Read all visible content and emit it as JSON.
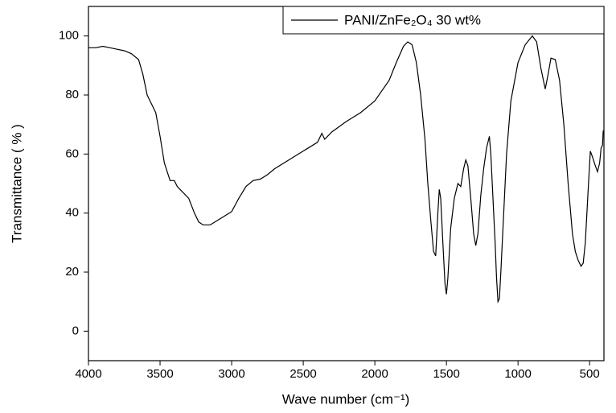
{
  "chart_data": {
    "type": "line",
    "xlabel": "Wave number (cm⁻¹)",
    "ylabel": "Transmittance ( % )",
    "x": [
      4000,
      3950,
      3900,
      3850,
      3800,
      3750,
      3700,
      3650,
      3620,
      3590,
      3560,
      3530,
      3500,
      3470,
      3430,
      3400,
      3380,
      3350,
      3300,
      3260,
      3230,
      3200,
      3150,
      3100,
      3050,
      3000,
      2950,
      2900,
      2850,
      2800,
      2750,
      2700,
      2600,
      2500,
      2400,
      2370,
      2350,
      2300,
      2200,
      2100,
      2000,
      1900,
      1850,
      1800,
      1770,
      1740,
      1710,
      1680,
      1650,
      1630,
      1610,
      1590,
      1575,
      1560,
      1550,
      1540,
      1525,
      1510,
      1500,
      1490,
      1470,
      1445,
      1420,
      1400,
      1380,
      1365,
      1350,
      1330,
      1310,
      1295,
      1280,
      1260,
      1240,
      1220,
      1200,
      1190,
      1175,
      1160,
      1150,
      1140,
      1130,
      1120,
      1100,
      1080,
      1050,
      1000,
      950,
      900,
      870,
      840,
      810,
      790,
      770,
      740,
      710,
      680,
      650,
      620,
      600,
      580,
      560,
      545,
      530,
      510,
      495,
      480,
      460,
      445,
      430,
      420,
      410,
      405
    ],
    "series": [
      {
        "name": "PANI/ZnFe₂O₄ 30 wt%",
        "color": "#000000",
        "values": [
          96,
          96,
          96.5,
          96,
          95.5,
          95,
          94,
          92,
          87,
          80,
          77,
          74,
          66,
          57,
          51,
          51,
          49,
          47.5,
          45,
          40,
          37,
          36,
          36,
          37.5,
          39,
          40.5,
          45,
          49,
          51,
          51.5,
          53,
          55,
          58,
          61,
          64,
          67,
          65,
          67.5,
          71,
          74,
          78,
          85,
          91,
          96.5,
          98,
          97,
          91,
          80,
          65,
          50,
          38,
          27,
          25.5,
          40,
          48,
          45,
          30,
          16,
          12.5,
          18,
          35,
          45,
          50,
          49,
          55,
          58,
          56,
          45,
          33,
          29,
          33,
          46,
          55,
          62,
          66,
          60,
          45,
          30,
          18,
          10,
          11,
          20,
          40,
          60,
          78,
          91,
          97,
          100,
          98,
          89,
          82,
          87,
          92.5,
          92,
          85,
          70,
          50,
          33,
          27,
          24,
          22,
          23,
          30,
          48,
          61,
          59,
          56,
          54,
          57,
          62,
          63,
          68
        ]
      }
    ],
    "xlim": [
      4000,
      400
    ],
    "ylim": [
      -10,
      110
    ],
    "xticks": [
      4000,
      3500,
      3000,
      2500,
      2000,
      1500,
      1000,
      500
    ],
    "yticks": [
      0,
      20,
      40,
      60,
      80,
      100
    ],
    "legend": "upper right"
  }
}
